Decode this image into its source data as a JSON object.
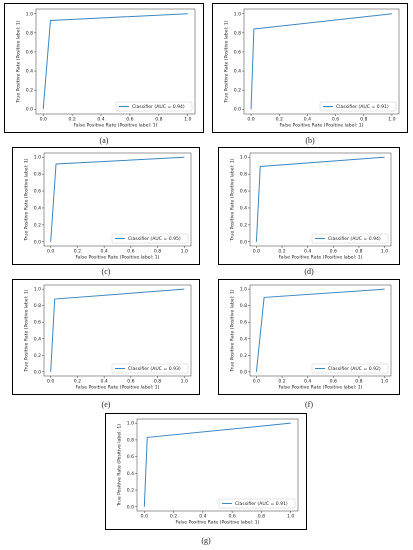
{
  "chart_data": [
    {
      "type": "line",
      "caption": "(a)",
      "xlabel": "False Positive Rate (Positive label: 1)",
      "ylabel": "True Positive Rate (Positive label: 1)",
      "legend": "lower right",
      "x": [
        0,
        0.05,
        1
      ],
      "series": [
        {
          "name": "Classifier (AUC = 0.94)",
          "color": "#3a87c0",
          "values": [
            0,
            0.93,
            1
          ]
        }
      ],
      "xlim": [
        -0.05,
        1.05
      ],
      "ylim": [
        -0.05,
        1.05
      ],
      "xticks": [
        {
          "value": 0,
          "label": "0.0"
        },
        {
          "value": 0.2,
          "label": "0.2"
        },
        {
          "value": 0.4,
          "label": "0.4"
        },
        {
          "value": 0.6,
          "label": "0.6"
        },
        {
          "value": 0.8,
          "label": "0.8"
        },
        {
          "value": 1,
          "label": "1.0"
        }
      ],
      "yticks": [
        {
          "value": 0,
          "label": "0.0"
        },
        {
          "value": 0.2,
          "label": "0.2"
        },
        {
          "value": 0.4,
          "label": "0.4"
        },
        {
          "value": 0.6,
          "label": "0.6"
        },
        {
          "value": 0.8,
          "label": "0.8"
        },
        {
          "value": 1,
          "label": "1.0"
        }
      ]
    },
    {
      "type": "line",
      "caption": "(b)",
      "xlabel": "False Positive Rate (Positive label: 1)",
      "ylabel": "True Positive Rate (Positive label: 1)",
      "legend": "lower right",
      "x": [
        0,
        0.02,
        1
      ],
      "series": [
        {
          "name": "Classifier (AUC = 0.91)",
          "color": "#3a87c0",
          "values": [
            0,
            0.84,
            1
          ]
        }
      ],
      "xlim": [
        -0.05,
        1.05
      ],
      "ylim": [
        -0.05,
        1.05
      ],
      "xticks": [
        {
          "value": 0,
          "label": "0.0"
        },
        {
          "value": 0.2,
          "label": "0.2"
        },
        {
          "value": 0.4,
          "label": "0.4"
        },
        {
          "value": 0.6,
          "label": "0.6"
        },
        {
          "value": 0.8,
          "label": "0.8"
        },
        {
          "value": 1,
          "label": "1.0"
        }
      ],
      "yticks": [
        {
          "value": 0,
          "label": "0.0"
        },
        {
          "value": 0.2,
          "label": "0.2"
        },
        {
          "value": 0.4,
          "label": "0.4"
        },
        {
          "value": 0.6,
          "label": "0.6"
        },
        {
          "value": 0.8,
          "label": "0.8"
        },
        {
          "value": 1,
          "label": "1.0"
        }
      ]
    },
    {
      "type": "line",
      "caption": "(c)",
      "xlabel": "False Positive Rate (Positive label: 1)",
      "ylabel": "True Positive Rate (Positive label: 1)",
      "legend": "lower right",
      "x": [
        0,
        0.04,
        1
      ],
      "series": [
        {
          "name": "Classifier (AUC = 0.95)",
          "color": "#3a87c0",
          "values": [
            0,
            0.92,
            1
          ]
        }
      ],
      "xlim": [
        -0.05,
        1.05
      ],
      "ylim": [
        -0.05,
        1.05
      ],
      "xticks": [
        {
          "value": 0,
          "label": "0.0"
        },
        {
          "value": 0.2,
          "label": "0.2"
        },
        {
          "value": 0.4,
          "label": "0.4"
        },
        {
          "value": 0.6,
          "label": "0.6"
        },
        {
          "value": 0.8,
          "label": "0.8"
        },
        {
          "value": 1,
          "label": "1.0"
        }
      ],
      "yticks": [
        {
          "value": 0,
          "label": "0.0"
        },
        {
          "value": 0.2,
          "label": "0.2"
        },
        {
          "value": 0.4,
          "label": "0.4"
        },
        {
          "value": 0.6,
          "label": "0.6"
        },
        {
          "value": 0.8,
          "label": "0.8"
        },
        {
          "value": 1,
          "label": "1.0"
        }
      ]
    },
    {
      "type": "line",
      "caption": "(d)",
      "xlabel": "False Positive Rate (Positive label: 1)",
      "ylabel": "True Positive Rate (Positive label: 1)",
      "legend": "lower right",
      "x": [
        0,
        0.03,
        1
      ],
      "series": [
        {
          "name": "Classifier (AUC = 0.94)",
          "color": "#3a87c0",
          "values": [
            0,
            0.89,
            1
          ]
        }
      ],
      "xlim": [
        -0.05,
        1.05
      ],
      "ylim": [
        -0.05,
        1.05
      ],
      "xticks": [
        {
          "value": 0,
          "label": "0.0"
        },
        {
          "value": 0.2,
          "label": "0.2"
        },
        {
          "value": 0.4,
          "label": "0.4"
        },
        {
          "value": 0.6,
          "label": "0.6"
        },
        {
          "value": 0.8,
          "label": "0.8"
        },
        {
          "value": 1,
          "label": "1.0"
        }
      ],
      "yticks": [
        {
          "value": 0,
          "label": "0.0"
        },
        {
          "value": 0.2,
          "label": "0.2"
        },
        {
          "value": 0.4,
          "label": "0.4"
        },
        {
          "value": 0.6,
          "label": "0.6"
        },
        {
          "value": 0.8,
          "label": "0.8"
        },
        {
          "value": 1,
          "label": "1.0"
        }
      ]
    },
    {
      "type": "line",
      "caption": "(e)",
      "xlabel": "False Positive Rate (Positive label: 1)",
      "ylabel": "True Positive Rate (Positive label: 1)",
      "legend": "lower right",
      "x": [
        0,
        0.03,
        1
      ],
      "series": [
        {
          "name": "Classifier (AUC = 0.93)",
          "color": "#3a87c0",
          "values": [
            0,
            0.88,
            1
          ]
        }
      ],
      "xlim": [
        -0.05,
        1.05
      ],
      "ylim": [
        -0.05,
        1.05
      ],
      "xticks": [
        {
          "value": 0,
          "label": "0.0"
        },
        {
          "value": 0.2,
          "label": "0.2"
        },
        {
          "value": 0.4,
          "label": "0.4"
        },
        {
          "value": 0.6,
          "label": "0.6"
        },
        {
          "value": 0.8,
          "label": "0.8"
        },
        {
          "value": 1,
          "label": "1.0"
        }
      ],
      "yticks": [
        {
          "value": 0,
          "label": "0.0"
        },
        {
          "value": 0.2,
          "label": "0.2"
        },
        {
          "value": 0.4,
          "label": "0.4"
        },
        {
          "value": 0.6,
          "label": "0.6"
        },
        {
          "value": 0.8,
          "label": "0.8"
        },
        {
          "value": 1,
          "label": "1.0"
        }
      ]
    },
    {
      "type": "line",
      "caption": "(f)",
      "xlabel": "False Positive Rate (Positive label: 1)",
      "ylabel": "True Positive Rate (Positive label: 1)",
      "legend": "lower right",
      "x": [
        0,
        0.06,
        1
      ],
      "series": [
        {
          "name": "Classifier (AUC = 0.92)",
          "color": "#3a87c0",
          "values": [
            0,
            0.9,
            1
          ]
        }
      ],
      "xlim": [
        -0.05,
        1.05
      ],
      "ylim": [
        -0.05,
        1.05
      ],
      "xticks": [
        {
          "value": 0,
          "label": "0.0"
        },
        {
          "value": 0.2,
          "label": "0.2"
        },
        {
          "value": 0.4,
          "label": "0.4"
        },
        {
          "value": 0.6,
          "label": "0.6"
        },
        {
          "value": 0.8,
          "label": "0.8"
        },
        {
          "value": 1,
          "label": "1.0"
        }
      ],
      "yticks": [
        {
          "value": 0,
          "label": "0.0"
        },
        {
          "value": 0.2,
          "label": "0.2"
        },
        {
          "value": 0.4,
          "label": "0.4"
        },
        {
          "value": 0.6,
          "label": "0.6"
        },
        {
          "value": 0.8,
          "label": "0.8"
        },
        {
          "value": 1,
          "label": "1.0"
        }
      ]
    },
    {
      "type": "line",
      "caption": "(g)",
      "xlabel": "False Positive Rate (Positive label: 1)",
      "ylabel": "True Positive Rate (Positive label: 1)",
      "legend": "lower right",
      "x": [
        0,
        0.02,
        1
      ],
      "series": [
        {
          "name": "Classifier (AUC = 0.91)",
          "color": "#3a87c0",
          "values": [
            0,
            0.83,
            1
          ]
        }
      ],
      "xlim": [
        -0.05,
        1.05
      ],
      "ylim": [
        -0.05,
        1.05
      ],
      "xticks": [
        {
          "value": 0,
          "label": "0.0"
        },
        {
          "value": 0.2,
          "label": "0.2"
        },
        {
          "value": 0.4,
          "label": "0.4"
        },
        {
          "value": 0.6,
          "label": "0.6"
        },
        {
          "value": 0.8,
          "label": "0.8"
        },
        {
          "value": 1,
          "label": "1.0"
        }
      ],
      "yticks": [
        {
          "value": 0,
          "label": "0.0"
        },
        {
          "value": 0.2,
          "label": "0.2"
        },
        {
          "value": 0.4,
          "label": "0.4"
        },
        {
          "value": 0.6,
          "label": "0.6"
        },
        {
          "value": 0.8,
          "label": "0.8"
        },
        {
          "value": 1,
          "label": "1.0"
        }
      ]
    }
  ]
}
